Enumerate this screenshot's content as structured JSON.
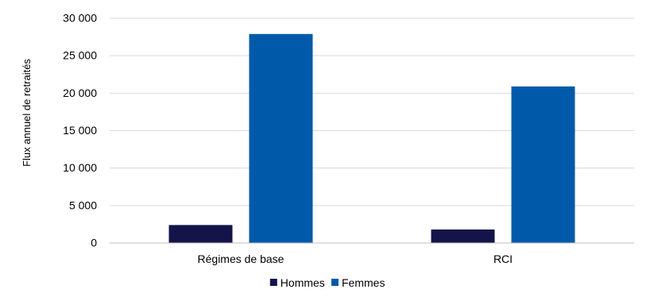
{
  "chart_data": {
    "type": "bar",
    "title": "",
    "xlabel": "",
    "ylabel": "Flux annuel de retraités",
    "categories": [
      "Régimes de base",
      "RCI"
    ],
    "series": [
      {
        "name": "Hommes",
        "values": [
          2400,
          1800
        ],
        "color": "#14144a"
      },
      {
        "name": "Femmes",
        "values": [
          27900,
          20900
        ],
        "color": "#005aa9"
      }
    ],
    "ylim": [
      0,
      30000
    ],
    "yticks": [
      0,
      5000,
      10000,
      15000,
      20000,
      25000,
      30000
    ],
    "ytick_labels": [
      "0",
      "5 000",
      "10 000",
      "15 000",
      "20 000",
      "25 000",
      "30 000"
    ],
    "grid": true,
    "legend_position": "bottom"
  }
}
